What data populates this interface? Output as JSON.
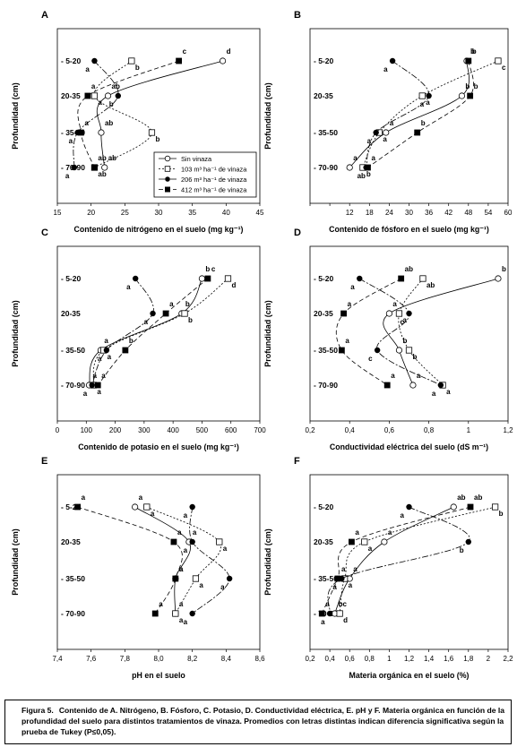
{
  "figure": {
    "caption_label": "Figura 5.",
    "caption_text": "Contenido de A. Nitrógeno, B. Fósforo, C. Potasio, D. Conductividad eléctrica, E. pH y F. Materia orgánica en función de la profundidad del suelo para distintos tratamientos de vinaza. Promedios con letras distintas indican diferencia significativa según la prueba de Tukey (P≤0,05).",
    "y_axis_label": "Profundidad (cm)",
    "depth_labels": [
      "- 5-20",
      "20-35",
      "- 35-50",
      "- 70-90"
    ]
  },
  "legend": [
    {
      "label": "Sin vinaza",
      "marker": "open-circle",
      "line": "solid"
    },
    {
      "label": "103 m³ ha⁻¹ de vinaza",
      "marker": "open-square",
      "line": "dotted"
    },
    {
      "label": "206 m³ ha⁻¹ de vinaza",
      "marker": "filled-circle",
      "line": "dash-dot"
    },
    {
      "label": "412 m³ ha⁻¹ de vinaza",
      "marker": "filled-square",
      "line": "dashed"
    }
  ],
  "chart_data": [
    {
      "panel": "A",
      "type": "line",
      "xlabel": "Contenido de nitrógeno en el suelo (mg kg⁻¹)",
      "ylabel": "Profundidad (cm)",
      "xlim": [
        15,
        45
      ],
      "xticks": [
        15,
        20,
        25,
        30,
        35,
        40,
        45
      ],
      "categories": [
        "5-20",
        "20-35",
        "35-50",
        "70-90"
      ],
      "series": [
        {
          "name": "Sin vinaza",
          "x": [
            39.5,
            22.5,
            21.5,
            22
          ],
          "letters": [
            "d",
            "ab",
            "ab",
            "ab"
          ]
        },
        {
          "name": "103 m³ ha⁻¹ de vinaza",
          "x": [
            26,
            20.5,
            29,
            20.5
          ],
          "letters": [
            "b",
            "a",
            "b",
            "ab"
          ]
        },
        {
          "name": "206 m³ ha⁻¹ de vinaza",
          "x": [
            20.5,
            24,
            18,
            17.5
          ],
          "letters": [
            "a",
            "b",
            "a",
            "a"
          ]
        },
        {
          "name": "412 m³ ha⁻¹ de vinaza",
          "x": [
            33,
            19.5,
            18.5,
            20.5
          ],
          "letters": [
            "c",
            "a",
            "a",
            "ab"
          ]
        }
      ]
    },
    {
      "panel": "B",
      "type": "line",
      "xlabel": "Contenido de fósforo en el suelo (mg kg⁻¹)",
      "ylabel": "Profundidad (cm)",
      "xlim": [
        0,
        60
      ],
      "xticks": [
        0,
        6,
        12,
        18,
        24,
        30,
        36,
        42,
        48,
        54,
        60
      ],
      "xtick_labels": [
        "",
        "",
        "12",
        "18",
        "24",
        "30",
        "36",
        "42",
        "48",
        "54",
        "60"
      ],
      "categories": [
        "5-20",
        "20-35",
        "35-50",
        "70-90"
      ],
      "series": [
        {
          "name": "Sin vinaza",
          "x": [
            47.5,
            46,
            23,
            12
          ],
          "letters": [
            "b",
            "b",
            "a",
            "a"
          ]
        },
        {
          "name": "103 m³ ha⁻¹ de vinaza",
          "x": [
            57,
            34,
            21,
            16
          ],
          "letters": [
            "c",
            "a",
            "a",
            "b"
          ]
        },
        {
          "name": "206 m³ ha⁻¹ de vinaza",
          "x": [
            25,
            36,
            20,
            17
          ],
          "letters": [
            "a",
            "a",
            "a",
            "ab"
          ]
        },
        {
          "name": "412 m³ ha⁻¹ de vinaza",
          "x": [
            48,
            48.5,
            32.5,
            17.5
          ],
          "letters": [
            "b",
            "b",
            "b",
            "a"
          ]
        }
      ]
    },
    {
      "panel": "C",
      "type": "line",
      "xlabel": "Contenido de potasio en el suelo (mg kg⁻¹)",
      "ylabel": "Profundidad (cm)",
      "xlim": [
        0,
        700
      ],
      "xticks": [
        0,
        100,
        200,
        300,
        400,
        500,
        600,
        700
      ],
      "categories": [
        "5-20",
        "20-35",
        "35-50",
        "70-90"
      ],
      "series": [
        {
          "name": "Sin vinaza",
          "x": [
            500,
            430,
            150,
            110
          ],
          "letters": [
            "b",
            "b",
            "a",
            "a"
          ]
        },
        {
          "name": "103 m³ ha⁻¹ de vinaza",
          "x": [
            590,
            440,
            160,
            125
          ],
          "letters": [
            "d",
            "b",
            "a",
            "a"
          ]
        },
        {
          "name": "206 m³ ha⁻¹ de vinaza",
          "x": [
            270,
            330,
            170,
            120
          ],
          "letters": [
            "a",
            "a",
            "a",
            "a"
          ]
        },
        {
          "name": "412 m³ ha⁻¹ de vinaza",
          "x": [
            520,
            375,
            235,
            140
          ],
          "letters": [
            "c",
            "a",
            "b",
            "a"
          ]
        }
      ]
    },
    {
      "panel": "D",
      "type": "line",
      "xlabel": "Conductividad eléctrica del suelo (dS m⁻¹)",
      "ylabel": "Profundidad (cm)",
      "xlim": [
        0.2,
        1.2
      ],
      "xticks": [
        0.2,
        0.4,
        0.6,
        0.8,
        1.0,
        1.2
      ],
      "xtick_labels": [
        "0,2",
        "0,4",
        "0,6",
        "0,8",
        "1",
        "1,2"
      ],
      "categories": [
        "5-20",
        "20-35",
        "35-50",
        "70-90"
      ],
      "series": [
        {
          "name": "Sin vinaza",
          "x": [
            1.15,
            0.6,
            0.65,
            0.72
          ],
          "letters": [
            "b",
            "a",
            "b",
            "a"
          ]
        },
        {
          "name": "103 m³ ha⁻¹ de vinaza",
          "x": [
            0.77,
            0.65,
            0.7,
            0.87
          ],
          "letters": [
            "ab",
            "a",
            "b",
            "a"
          ]
        },
        {
          "name": "206 m³ ha⁻¹ de vinaza",
          "x": [
            0.45,
            0.7,
            0.54,
            0.86
          ],
          "letters": [
            "a",
            "c",
            "c",
            "a"
          ]
        },
        {
          "name": "412 m³ ha⁻¹ de vinaza",
          "x": [
            0.66,
            0.37,
            0.36,
            0.59
          ],
          "letters": [
            "ab",
            "a",
            "a",
            "a"
          ]
        }
      ]
    },
    {
      "panel": "E",
      "type": "line",
      "xlabel": "pH en el suelo",
      "ylabel": "Profundidad (cm)",
      "xlim": [
        7.4,
        8.6
      ],
      "xticks": [
        7.4,
        7.6,
        7.8,
        8.0,
        8.2,
        8.4,
        8.6
      ],
      "xtick_labels": [
        "7,4",
        "7,6",
        "7,8",
        "8,0",
        "8,2",
        "8,4",
        "8,6"
      ],
      "categories": [
        "5-20",
        "20-35",
        "35-50",
        "70-90"
      ],
      "series": [
        {
          "name": "Sin vinaza",
          "x": [
            7.86,
            8.18,
            8.1,
            8.1
          ],
          "letters": [
            "a",
            "a",
            "a",
            "a"
          ]
        },
        {
          "name": "103 m³ ha⁻¹ de vinaza",
          "x": [
            7.93,
            8.36,
            8.22,
            8.1
          ],
          "letters": [
            "a",
            "a",
            "a",
            "a"
          ]
        },
        {
          "name": "206 m³ ha⁻¹ de vinaza",
          "x": [
            8.2,
            8.2,
            8.42,
            8.2
          ],
          "letters": [
            "a",
            "a",
            "a",
            "a"
          ]
        },
        {
          "name": "412 m³ ha⁻¹ de vinaza",
          "x": [
            7.52,
            8.09,
            8.1,
            7.98
          ],
          "letters": [
            "a",
            "a",
            "a",
            "a"
          ]
        }
      ]
    },
    {
      "panel": "F",
      "type": "line",
      "xlabel": "Materia orgánica en el suelo (%)",
      "ylabel": "Profundidad (cm)",
      "xlim": [
        0.2,
        2.2
      ],
      "xticks": [
        0.2,
        0.4,
        0.6,
        0.8,
        1.0,
        1.2,
        1.4,
        1.6,
        1.8,
        2.0,
        2.2
      ],
      "xtick_labels": [
        "0,2",
        "0,4",
        "0,6",
        "0,8",
        "1",
        "1,2",
        "1,4",
        "1,6",
        "1,8",
        "2",
        "2,2"
      ],
      "categories": [
        "5-20",
        "20-35",
        "35-50",
        "70-90"
      ],
      "series": [
        {
          "name": "Sin vinaza",
          "x": [
            1.65,
            0.95,
            0.6,
            0.45
          ],
          "letters": [
            "ab",
            "a",
            "a",
            "bc"
          ]
        },
        {
          "name": "103 m³ ha⁻¹ de vinaza",
          "x": [
            2.07,
            0.75,
            0.55,
            0.5
          ],
          "letters": [
            "b",
            "a",
            "a",
            "d"
          ]
        },
        {
          "name": "206 m³ ha⁻¹ de vinaza",
          "x": [
            1.2,
            1.8,
            0.52,
            0.4
          ],
          "letters": [
            "a",
            "b",
            "a",
            "a"
          ]
        },
        {
          "name": "412 m³ ha⁻¹ de vinaza",
          "x": [
            1.82,
            0.62,
            0.48,
            0.32
          ],
          "letters": [
            "ab",
            "a",
            "a",
            "a"
          ]
        }
      ]
    }
  ]
}
